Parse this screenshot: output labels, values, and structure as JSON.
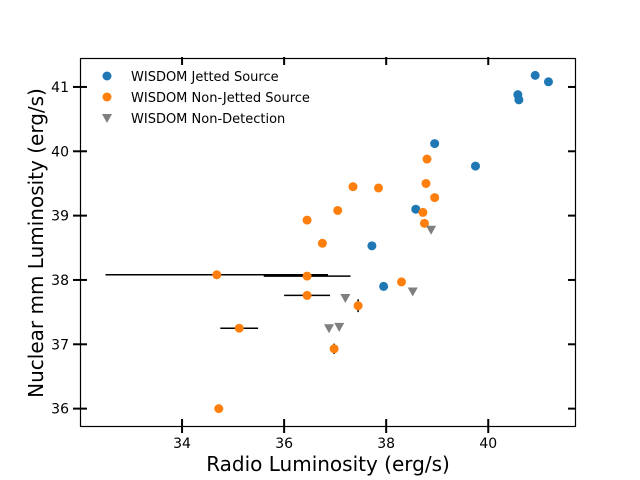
{
  "chart_data": {
    "type": "scatter",
    "title": "",
    "xlabel": "Radio Luminosity (erg/s)",
    "ylabel": "Nuclear mm Luminosity (erg/s)",
    "xlim": [
      32.0,
      41.7
    ],
    "ylim": [
      35.73,
      41.45
    ],
    "xticks": [
      34,
      36,
      38,
      40
    ],
    "yticks": [
      36,
      37,
      38,
      39,
      40,
      41
    ],
    "grid": false,
    "legend_position": "top-left",
    "colors": {
      "jetted": "#1f77b4",
      "nonjetted": "#ff7f0e",
      "nondetection": "#7f7f7f"
    },
    "series": [
      {
        "name": "WISDOM Jetted Source",
        "marker": "circle",
        "color": "#1f77b4",
        "points": [
          {
            "x": 40.92,
            "y": 41.18
          },
          {
            "x": 41.18,
            "y": 41.08
          },
          {
            "x": 40.58,
            "y": 40.88
          },
          {
            "x": 40.6,
            "y": 40.8
          },
          {
            "x": 38.95,
            "y": 40.12
          },
          {
            "x": 39.75,
            "y": 39.77
          },
          {
            "x": 38.58,
            "y": 39.1
          },
          {
            "x": 37.72,
            "y": 38.53
          },
          {
            "x": 37.95,
            "y": 37.9
          }
        ]
      },
      {
        "name": "WISDOM Non-Jetted Source",
        "marker": "circle",
        "color": "#ff7f0e",
        "points": [
          {
            "x": 38.8,
            "y": 39.88
          },
          {
            "x": 37.35,
            "y": 39.45
          },
          {
            "x": 37.85,
            "y": 39.43
          },
          {
            "x": 38.78,
            "y": 39.5
          },
          {
            "x": 38.95,
            "y": 39.28
          },
          {
            "x": 38.72,
            "y": 39.05
          },
          {
            "x": 37.05,
            "y": 39.08
          },
          {
            "x": 36.45,
            "y": 38.93
          },
          {
            "x": 38.75,
            "y": 38.88
          },
          {
            "x": 36.75,
            "y": 38.57
          },
          {
            "x": 34.68,
            "y": 38.08,
            "xerr": 2.18
          },
          {
            "x": 36.45,
            "y": 38.06,
            "xerr": 0.85
          },
          {
            "x": 38.3,
            "y": 37.97
          },
          {
            "x": 36.45,
            "y": 37.76,
            "xerr": 0.45
          },
          {
            "x": 37.45,
            "y": 37.6,
            "yerr": 0.1
          },
          {
            "x": 35.12,
            "y": 37.25,
            "xerr": 0.37
          },
          {
            "x": 36.98,
            "y": 36.93,
            "yerr": 0.08
          },
          {
            "x": 34.72,
            "y": 36.0
          }
        ]
      },
      {
        "name": "WISDOM Non-Detection",
        "marker": "triangle-down",
        "color": "#7f7f7f",
        "points": [
          {
            "x": 38.88,
            "y": 38.78
          },
          {
            "x": 37.2,
            "y": 37.72
          },
          {
            "x": 38.52,
            "y": 37.82
          },
          {
            "x": 36.88,
            "y": 37.25
          },
          {
            "x": 37.08,
            "y": 37.27
          }
        ]
      }
    ]
  }
}
